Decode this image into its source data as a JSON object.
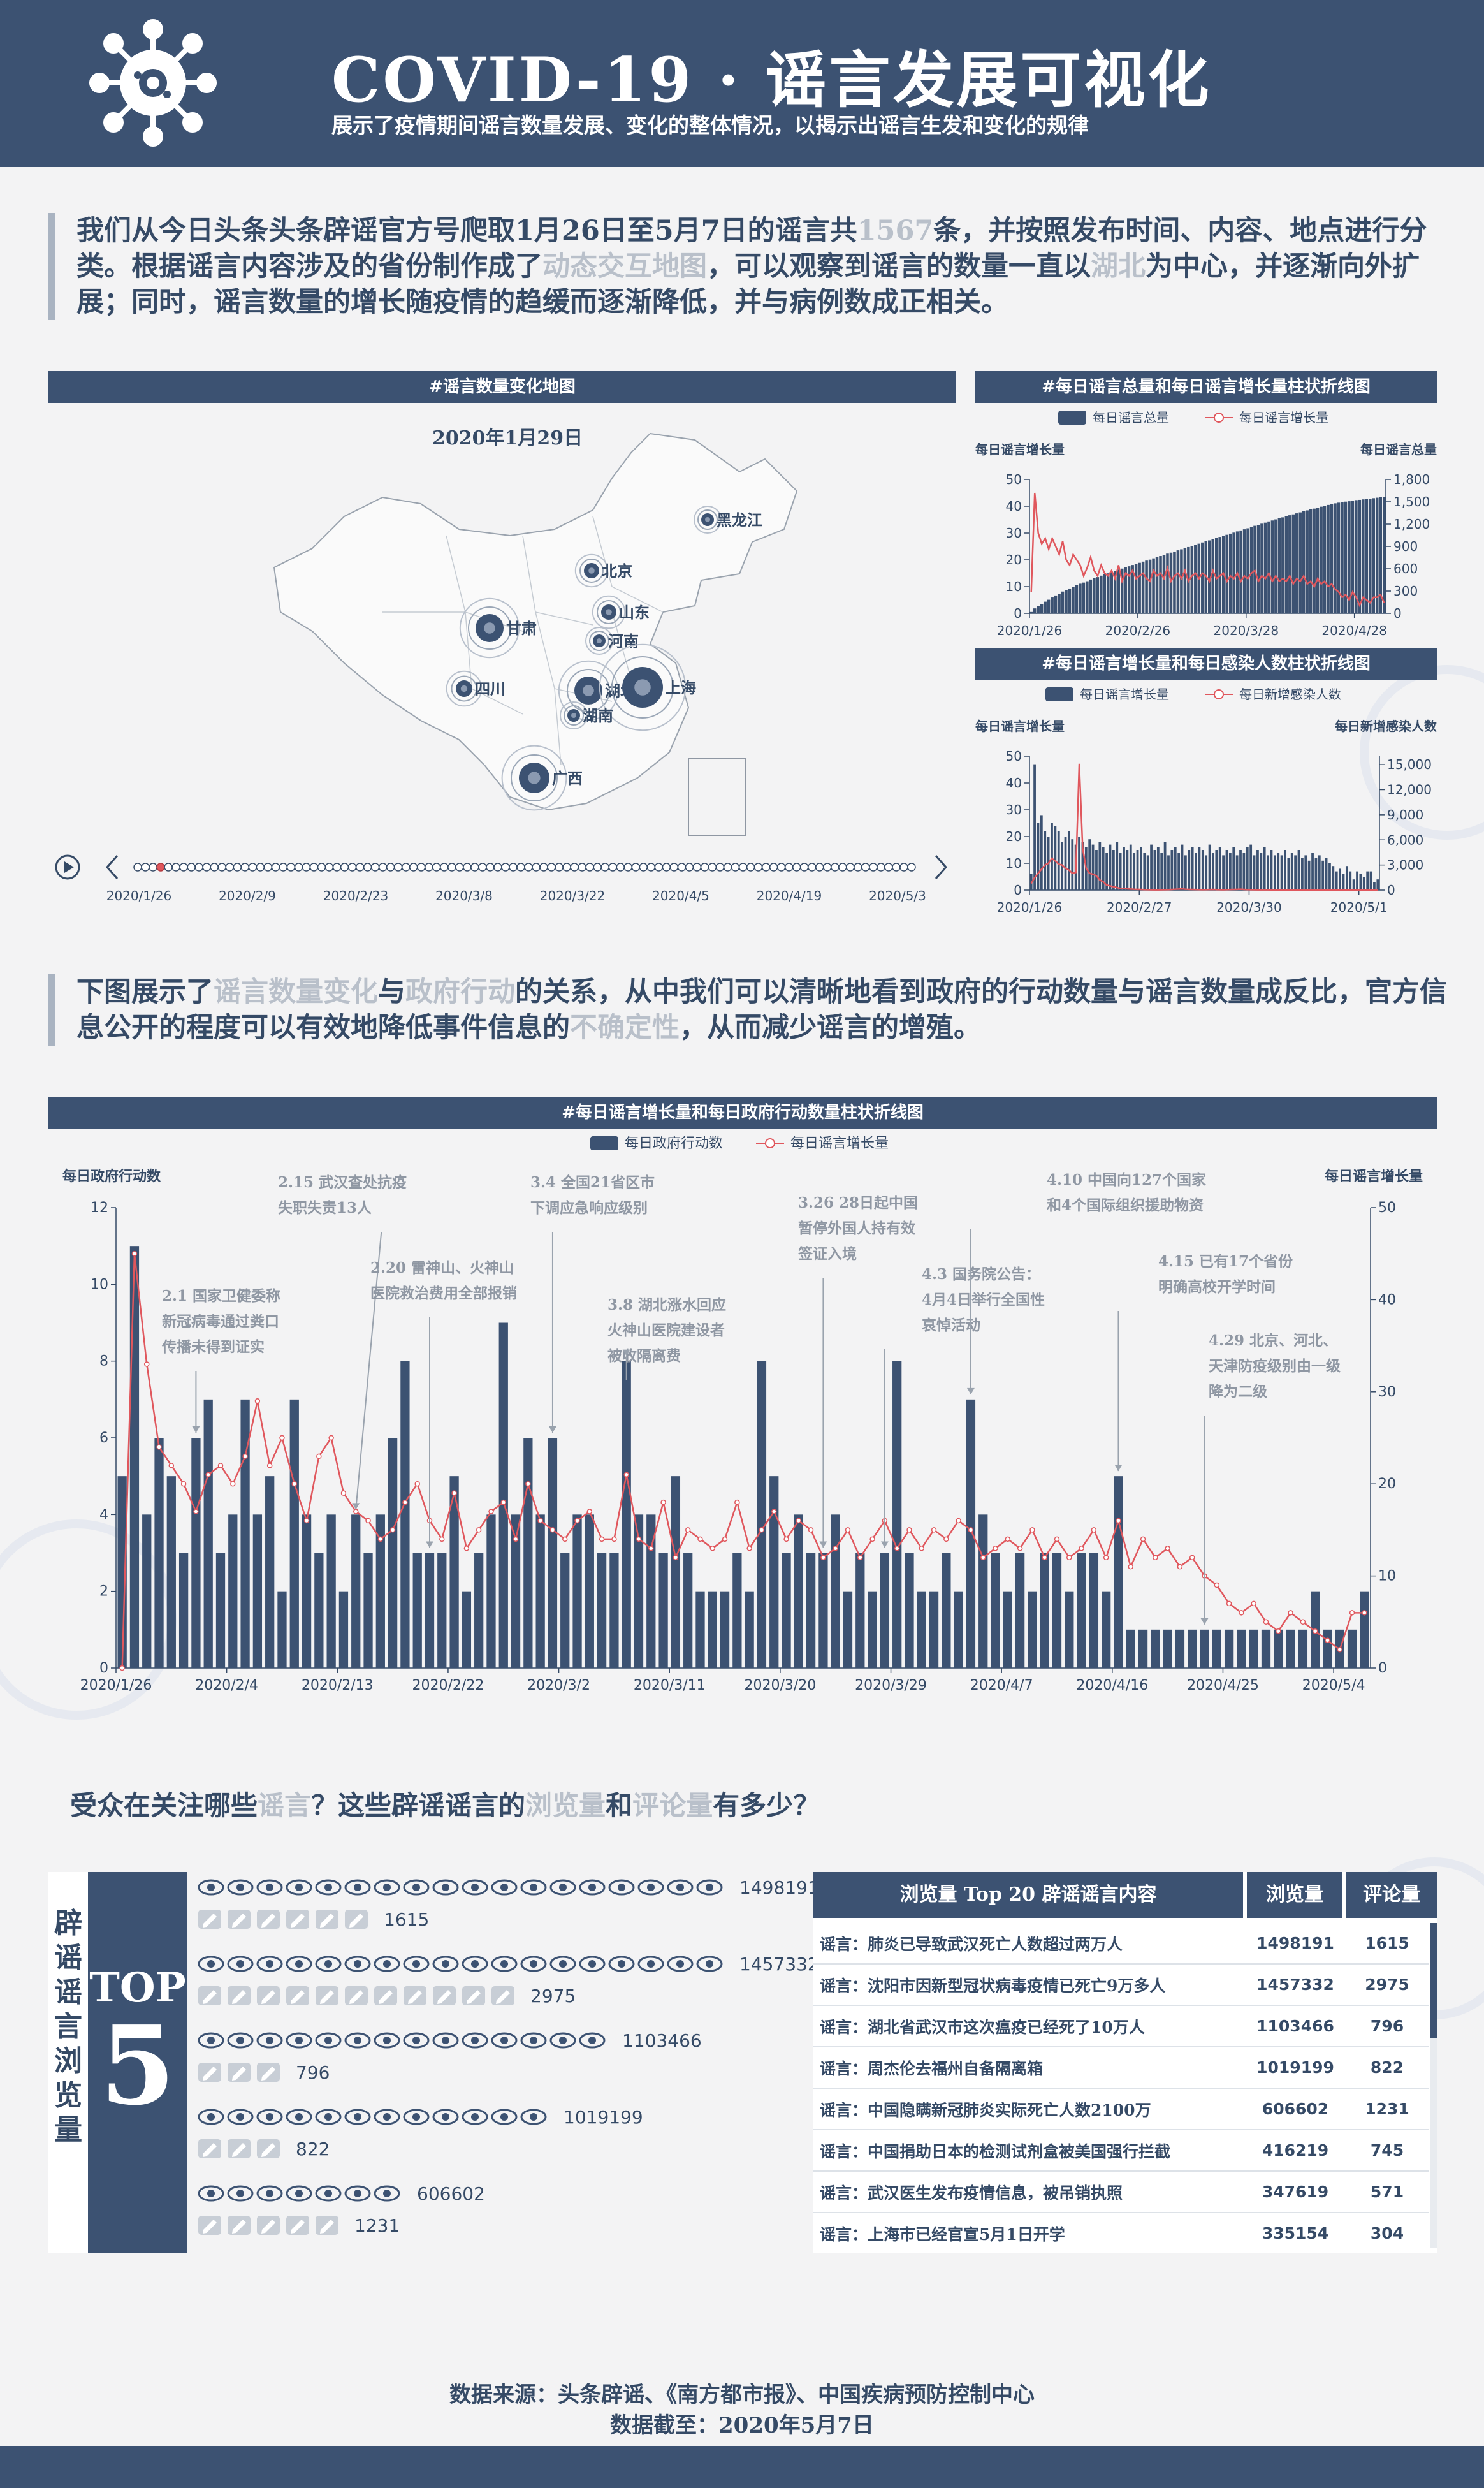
{
  "header": {
    "title": "COVID-19 · 谣言发展可视化",
    "subtitle": "展示了疫情期间谣言数量发展、变化的整体情况，以揭示出谣言生发和变化的规律"
  },
  "intro": {
    "p1": "我们从今日头条头条辟谣官方号爬取1月26日至5月7日的谣言共",
    "count": "1567",
    "p2": "条，并按照发布时间、内容、地点进行分类。根据谣言内容涉及的省份制作成了",
    "hl1": "动态交互地图",
    "p3": "，可以观察到谣言的数量一直以",
    "hl2": "湖北",
    "p4": "为中心，并逐渐向外扩展；同时，谣言数量的增长随疫情的趋缓而逐渐降低，并与病例数成正相关。"
  },
  "map_panel": {
    "title": "#谣言数量变化地图",
    "date": "2020年1月29日",
    "provinces": [
      "黑龙江",
      "北京",
      "山东",
      "甘肃",
      "河南",
      "四川",
      "湖北",
      "上海",
      "湖南",
      "广西"
    ],
    "timeline_labels": [
      "2020/1/26",
      "2020/2/9",
      "2020/2/23",
      "2020/3/8",
      "2020/3/22",
      "2020/4/5",
      "2020/4/19",
      "2020/5/3"
    ]
  },
  "middle_para": {
    "p1": "下图展示了",
    "hl1": "谣言数量变化",
    "p2": "与",
    "hl2": "政府行动",
    "p3": "的关系，从中我们可以清晰地看到政府的行动数量与谣言数量成反比，官方信息公开的程度可以有效地降低事件信息的",
    "hl3": "不确定性",
    "p4": "，从而减少谣言的增殖。"
  },
  "chart_data": [
    {
      "type": "bar",
      "title": "#每日谣言总量和每日谣言增长量柱状折线图",
      "legend": [
        "每日谣言总量",
        "每日谣言增长量"
      ],
      "ylabel_left": "每日谣言增长量",
      "ylabel_right": "每日谣言总量",
      "ylim_left": [
        0,
        50
      ],
      "ylim_right": [
        0,
        1800
      ],
      "yticks_left": [
        "0",
        "10",
        "20",
        "30",
        "40",
        "50"
      ],
      "yticks_right": [
        "0",
        "300",
        "600",
        "900",
        "1,200",
        "1,500",
        "1,800"
      ],
      "xticks": [
        "2020/1/26",
        "2020/2/26",
        "2020/3/28",
        "2020/4/28"
      ],
      "total_start": 10,
      "total_end": 1567,
      "growth": [
        8,
        45,
        30,
        26,
        28,
        24,
        28,
        25,
        22,
        27,
        20,
        18,
        22,
        20,
        18,
        14,
        17,
        21,
        16,
        14,
        18,
        15,
        14,
        16,
        13,
        18,
        12,
        15,
        14,
        16,
        13,
        14,
        15,
        13,
        12,
        16,
        14,
        15,
        13,
        17,
        12,
        14,
        15,
        13,
        16,
        12,
        14,
        15,
        13,
        15,
        14,
        12,
        16,
        13,
        14,
        15,
        12,
        14,
        13,
        15,
        12,
        14,
        13,
        15,
        16,
        12,
        14,
        13,
        15,
        12,
        14,
        12,
        13,
        12,
        14,
        11,
        13,
        12,
        14,
        11,
        12,
        10,
        13,
        11,
        12,
        10,
        11,
        9,
        8,
        6,
        7,
        5,
        8,
        6,
        3,
        6,
        5,
        4,
        6,
        6,
        7,
        4
      ]
    },
    {
      "type": "bar",
      "title": "#每日谣言增长量和每日感染人数柱状折线图",
      "legend": [
        "每日谣言增长量",
        "每日新增感染人数"
      ],
      "ylabel_left": "每日谣言增长量",
      "ylabel_right": "每日新增感染人数",
      "ylim_left": [
        0,
        50
      ],
      "ylim_right": [
        0,
        16000
      ],
      "yticks_left": [
        "0",
        "10",
        "20",
        "30",
        "40",
        "50"
      ],
      "yticks_right": [
        "0",
        "3,000",
        "6,000",
        "9,000",
        "12,000",
        "15,000"
      ],
      "xticks": [
        "2020/1/26",
        "2020/2/27",
        "2020/3/30",
        "2020/5/1"
      ],
      "bars": [
        6,
        47,
        25,
        28,
        22,
        20,
        25,
        24,
        22,
        18,
        20,
        22,
        19,
        17,
        20,
        18,
        16,
        19,
        17,
        15,
        18,
        16,
        14,
        17,
        15,
        18,
        14,
        16,
        15,
        17,
        14,
        15,
        16,
        14,
        13,
        17,
        15,
        16,
        14,
        18,
        13,
        15,
        16,
        14,
        17,
        13,
        15,
        16,
        14,
        16,
        15,
        13,
        17,
        14,
        15,
        16,
        13,
        15,
        14,
        16,
        13,
        15,
        14,
        16,
        17,
        13,
        15,
        14,
        16,
        13,
        15,
        13,
        14,
        13,
        15,
        12,
        14,
        13,
        15,
        12,
        13,
        11,
        14,
        12,
        13,
        11,
        12,
        10,
        9,
        7,
        8,
        6,
        9,
        7,
        4,
        7,
        6,
        5,
        7,
        7,
        3,
        4
      ],
      "cases": [
        800,
        1500,
        2000,
        2500,
        3000,
        3200,
        3800,
        3500,
        3100,
        3000,
        2600,
        2400,
        2000,
        2100,
        15100,
        5000,
        2600,
        2000,
        1900,
        1700,
        1200,
        1000,
        600,
        500,
        400,
        300,
        200,
        200,
        150,
        120,
        100,
        90,
        80,
        60,
        50,
        40,
        30,
        30,
        40,
        50,
        60,
        80,
        100,
        120,
        150,
        100,
        90,
        80,
        70,
        60,
        50,
        60,
        70,
        80,
        60,
        50,
        40,
        60,
        70,
        80,
        90,
        100,
        80,
        60,
        50,
        40,
        30,
        30,
        40,
        30,
        20,
        20,
        30,
        20,
        20,
        10,
        20,
        10,
        10,
        10,
        20,
        10,
        10,
        10,
        10,
        5,
        5,
        5,
        5,
        5,
        5,
        5,
        5,
        5,
        5,
        5,
        5,
        5,
        5,
        5,
        5,
        5
      ]
    },
    {
      "type": "bar",
      "title": "#每日谣言增长量和每日政府行动数量柱状折线图",
      "legend": [
        "每日政府行动数",
        "每日谣言增长量"
      ],
      "ylabel_left": "每日政府行动数",
      "ylabel_right": "每日谣言增长量",
      "ylim_left": [
        0,
        12
      ],
      "ylim_right": [
        0,
        50
      ],
      "yticks_left": [
        "0",
        "2",
        "4",
        "6",
        "8",
        "10",
        "12"
      ],
      "yticks_right": [
        "0",
        "10",
        "20",
        "30",
        "40",
        "50"
      ],
      "xticks": [
        "2020/1/26",
        "2020/2/4",
        "2020/2/13",
        "2020/2/22",
        "2020/3/2",
        "2020/3/11",
        "2020/3/20",
        "2020/3/29",
        "2020/4/7",
        "2020/4/16",
        "2020/4/25",
        "2020/5/4"
      ],
      "gov": [
        5,
        11,
        4,
        6,
        5,
        3,
        6,
        7,
        3,
        4,
        7,
        4,
        5,
        2,
        7,
        4,
        3,
        4,
        2,
        4,
        3,
        4,
        6,
        8,
        3,
        3,
        3,
        5,
        2,
        3,
        4,
        9,
        4,
        6,
        4,
        6,
        3,
        4,
        4,
        3,
        3,
        8,
        4,
        4,
        3,
        5,
        3,
        2,
        2,
        2,
        3,
        2,
        8,
        5,
        3,
        4,
        3,
        3,
        4,
        2,
        3,
        2,
        3,
        8,
        3,
        2,
        2,
        3,
        2,
        7,
        4,
        3,
        2,
        3,
        2,
        3,
        3,
        2,
        3,
        3,
        2,
        5,
        1,
        1,
        1,
        1,
        1,
        1,
        1,
        1,
        1,
        1,
        1,
        1,
        1,
        1,
        1,
        2,
        1,
        1,
        1,
        2
      ],
      "rumor": [
        0,
        45,
        33,
        24,
        22,
        20,
        17,
        21,
        22,
        20,
        23,
        29,
        22,
        25,
        20,
        16,
        23,
        25,
        19,
        17,
        16,
        14,
        15,
        18,
        20,
        16,
        14,
        19,
        13,
        15,
        17,
        18,
        14,
        20,
        16,
        15,
        14,
        16,
        17,
        14,
        14,
        21,
        14,
        13,
        18,
        12,
        15,
        14,
        13,
        14,
        18,
        13,
        15,
        17,
        14,
        16,
        15,
        12,
        13,
        15,
        12,
        14,
        16,
        13,
        15,
        13,
        15,
        14,
        16,
        15,
        12,
        13,
        14,
        13,
        15,
        12,
        14,
        12,
        13,
        15,
        12,
        16,
        11,
        14,
        12,
        13,
        11,
        12,
        10,
        9,
        7,
        6,
        7,
        5,
        4,
        6,
        5,
        4,
        3,
        2,
        6,
        6
      ],
      "annotations": [
        {
          "lines": [
            "2.1 国家卫健委称",
            "新冠病毒通过粪口",
            "传播未得到证实"
          ]
        },
        {
          "lines": [
            "2.15 武汉查处抗疫",
            "失职失责13人"
          ]
        },
        {
          "lines": [
            "2.20 雷神山、火神山",
            "医院救治费用全部报销"
          ]
        },
        {
          "lines": [
            "3.4 全国21省区市",
            "下调应急响应级别"
          ]
        },
        {
          "lines": [
            "3.8 湖北涨水回应",
            "火神山医院建设者",
            "被收隔离费"
          ]
        },
        {
          "lines": [
            "3.26 28日起中国",
            "暂停外国人持有效",
            "签证入境"
          ]
        },
        {
          "lines": [
            "4.3 国务院公告：",
            "4月4日举行全国性",
            "哀悼活动"
          ]
        },
        {
          "lines": [
            "4.10 中国向127个国家",
            "和4个国际组织援助物资"
          ]
        },
        {
          "lines": [
            "4.15 已有17个省份",
            "明确高校开学时间"
          ]
        },
        {
          "lines": [
            "4.29 北京、河北、",
            "天津防疫级别由一级",
            "降为二级"
          ]
        }
      ]
    }
  ],
  "bottom_section": {
    "question_p1": "受众在关注哪些",
    "question_hl1": "谣言",
    "question_p2": "？这些辟谣谣言的",
    "question_hl2": "浏览量",
    "question_p3": "和",
    "question_hl3": "评论量",
    "question_p4": "有多少？",
    "side_label": "辟谣谣言浏览量",
    "top_word": "TOP",
    "top_num": "5",
    "top5": [
      {
        "views": "1498191",
        "comments": "1615",
        "view_icons": 18,
        "comment_icons": 6
      },
      {
        "views": "1457332",
        "comments": "2975",
        "view_icons": 18,
        "comment_icons": 11
      },
      {
        "views": "1103466",
        "comments": "796",
        "view_icons": 14,
        "comment_icons": 3
      },
      {
        "views": "1019199",
        "comments": "822",
        "view_icons": 12,
        "comment_icons": 3
      },
      {
        "views": "606602",
        "comments": "1231",
        "view_icons": 7,
        "comment_icons": 5
      }
    ],
    "table": {
      "title": "浏览量 Top 20 辟谣谣言内容",
      "col_views": "浏览量",
      "col_comments": "评论量",
      "rows": [
        {
          "text": "谣言：肺炎已导致武汉死亡人数超过两万人",
          "views": "1498191",
          "comments": "1615"
        },
        {
          "text": "谣言：沈阳市因新型冠状病毒疫情已死亡9万多人",
          "views": "1457332",
          "comments": "2975"
        },
        {
          "text": "谣言：湖北省武汉市这次瘟疫已经死了10万人",
          "views": "1103466",
          "comments": "796"
        },
        {
          "text": "谣言：周杰伦去福州自备隔离箱",
          "views": "1019199",
          "comments": "822"
        },
        {
          "text": "谣言：中国隐瞒新冠肺炎实际死亡人数2100万",
          "views": "606602",
          "comments": "1231"
        },
        {
          "text": "谣言：中国捐助日本的检测试剂盒被美国强行拦截",
          "views": "416219",
          "comments": "745"
        },
        {
          "text": "谣言：武汉医生发布疫情信息，被吊销执照",
          "views": "347619",
          "comments": "571"
        },
        {
          "text": "谣言：上海市已经官宣5月1日开学",
          "views": "335154",
          "comments": "304"
        }
      ]
    }
  },
  "footer": {
    "source": "数据来源：头条辟谣、《南方都市报》、中国疾病预防控制中心",
    "cutoff": "数据截至：2020年5月7日"
  },
  "colors": {
    "navy": "#3c5272",
    "red": "#e0575d",
    "text": "#354a66",
    "light": "#b9c0ca"
  }
}
